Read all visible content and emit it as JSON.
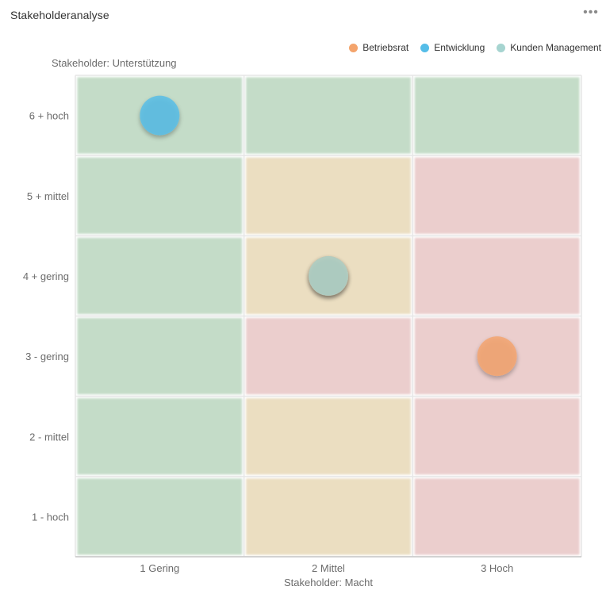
{
  "widget": {
    "title": "Stakeholderanalyse",
    "menu_icon": "more-horizontal-icon"
  },
  "chart_data": {
    "type": "scatter",
    "ylabel": "Stakeholder: Unterstützung",
    "xlabel": "Stakeholder: Macht",
    "x_categories": [
      "1 Gering",
      "2 Mittel",
      "3 Hoch"
    ],
    "y_categories": [
      "1  - hoch",
      "2  - mittel",
      "3  - gering",
      "4 + gering",
      "5 + mittel",
      "6 + hoch"
    ],
    "cell_colors": {
      "green": "#c4dcc8",
      "yellow": "#ebdec1",
      "red": "#ebcecd"
    },
    "grid": [
      [
        "green",
        "yellow",
        "red"
      ],
      [
        "green",
        "yellow",
        "red"
      ],
      [
        "green",
        "red",
        "red"
      ],
      [
        "green",
        "yellow",
        "red"
      ],
      [
        "green",
        "yellow",
        "red"
      ],
      [
        "green",
        "green",
        "green"
      ]
    ],
    "series": [
      {
        "name": "Betriebsrat",
        "color": "#f4a46c",
        "points": [
          {
            "x": "3 Hoch",
            "y": "3  - gering"
          },
          {
            "x": "2 Mittel",
            "y": "4 + gering"
          }
        ]
      },
      {
        "name": "Entwicklung",
        "color": "#55bde8",
        "points": [
          {
            "x": "1 Gering",
            "y": "6 + hoch"
          }
        ]
      },
      {
        "name": "Kunden Management",
        "color": "#a6d4d0",
        "points": [
          {
            "x": "2 Mittel",
            "y": "4 + gering"
          }
        ]
      }
    ],
    "legend_position": "top-right",
    "grid_lines": true
  }
}
